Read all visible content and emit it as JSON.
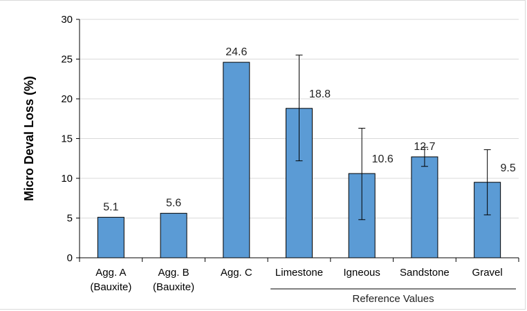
{
  "chart_data": {
    "type": "bar",
    "ylabel": "Micro Deval Loss (%)",
    "ylim": [
      0,
      30
    ],
    "yticks": [
      0,
      5,
      10,
      15,
      20,
      25,
      30
    ],
    "grid": true,
    "bar_color": "#5b9bd5",
    "categories": [
      [
        "Agg. A",
        "(Bauxite)"
      ],
      [
        "Agg. B",
        "(Bauxite)"
      ],
      [
        "Agg. C"
      ],
      [
        "Limestone"
      ],
      [
        "Igneous"
      ],
      [
        "Sandstone"
      ],
      [
        "Gravel"
      ]
    ],
    "values": [
      5.1,
      5.6,
      24.6,
      18.8,
      10.6,
      12.7,
      9.5
    ],
    "data_labels": [
      "5.1",
      "5.6",
      "24.6",
      "18.8",
      "10.6",
      "12.7",
      "9.5"
    ],
    "error_bars": [
      null,
      null,
      null,
      [
        12.2,
        25.5
      ],
      [
        4.8,
        16.3
      ],
      [
        11.5,
        13.9
      ],
      [
        5.4,
        13.6
      ]
    ],
    "group_label": "Reference Values"
  }
}
